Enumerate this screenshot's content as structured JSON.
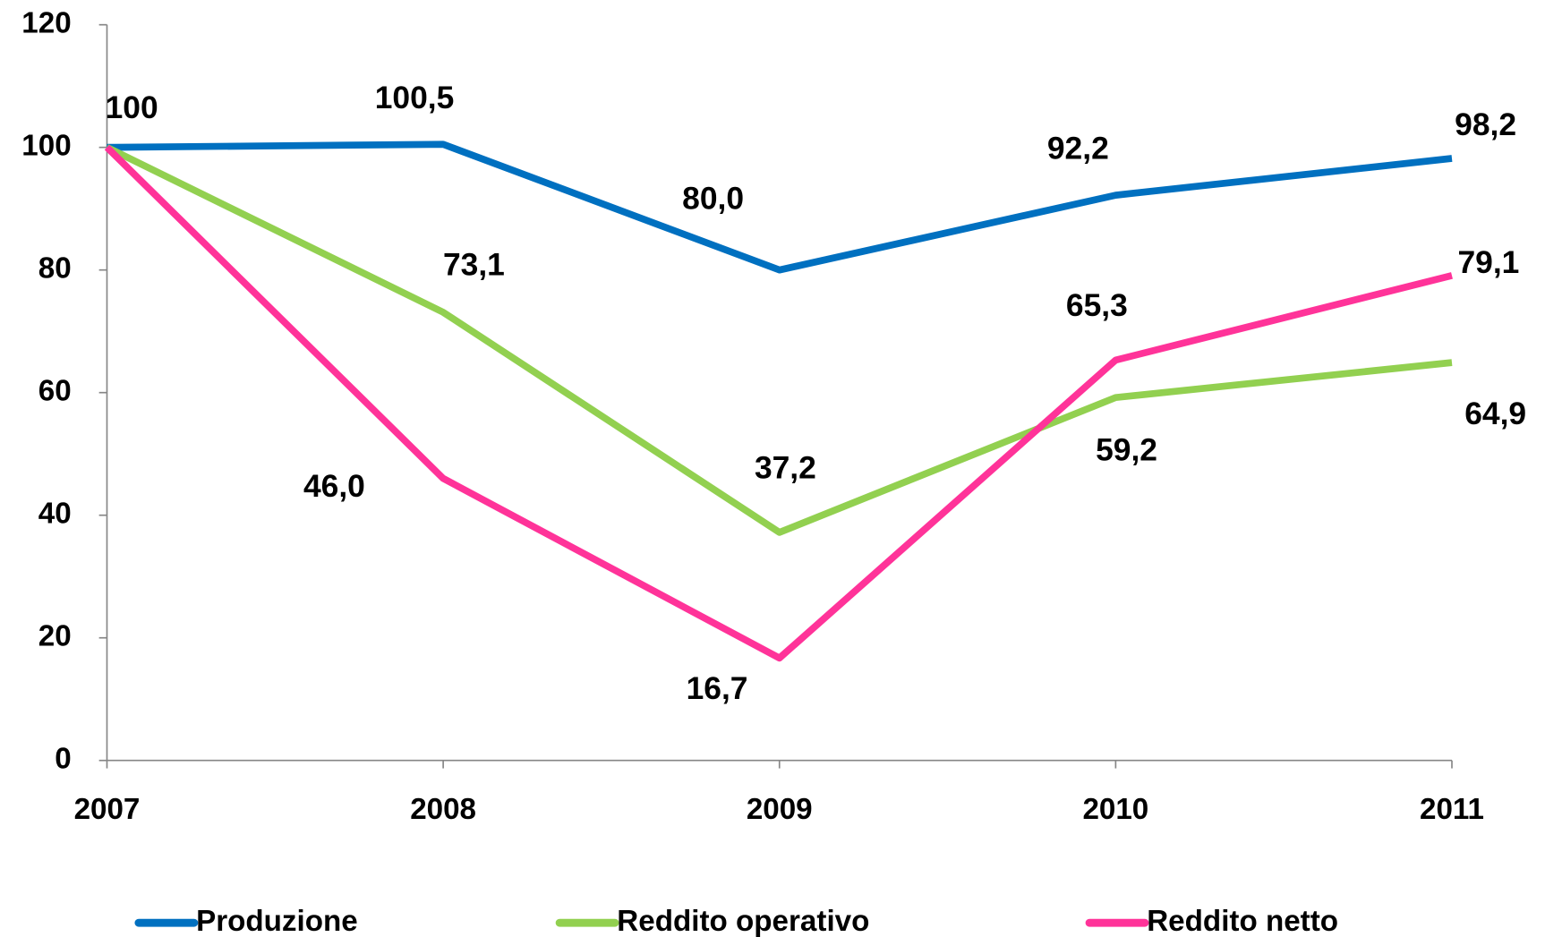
{
  "chart_data": {
    "type": "line",
    "categories": [
      "2007",
      "2008",
      "2009",
      "2010",
      "2011"
    ],
    "series": [
      {
        "name": "Produzione",
        "color": "#0070C0",
        "values": [
          100,
          100.5,
          80.0,
          92.2,
          98.2
        ],
        "value_labels": [
          "100",
          "100,5",
          "80,0",
          "92,2",
          "98,2"
        ]
      },
      {
        "name": "Reddito operativo",
        "color": "#92D050",
        "values": [
          100,
          73.1,
          37.2,
          59.2,
          64.9
        ],
        "value_labels": [
          null,
          "73,1",
          "37,2",
          "59,2",
          "64,9"
        ]
      },
      {
        "name": "Reddito netto",
        "color": "#FF3399",
        "values": [
          100,
          46.0,
          16.7,
          65.3,
          79.1
        ],
        "value_labels": [
          null,
          "46,0",
          "16,7",
          "65,3",
          "79,1"
        ]
      }
    ],
    "ylim": [
      0,
      120
    ],
    "yticks": [
      0,
      20,
      40,
      60,
      80,
      100,
      120
    ],
    "grid": false,
    "legend": "bottom"
  }
}
